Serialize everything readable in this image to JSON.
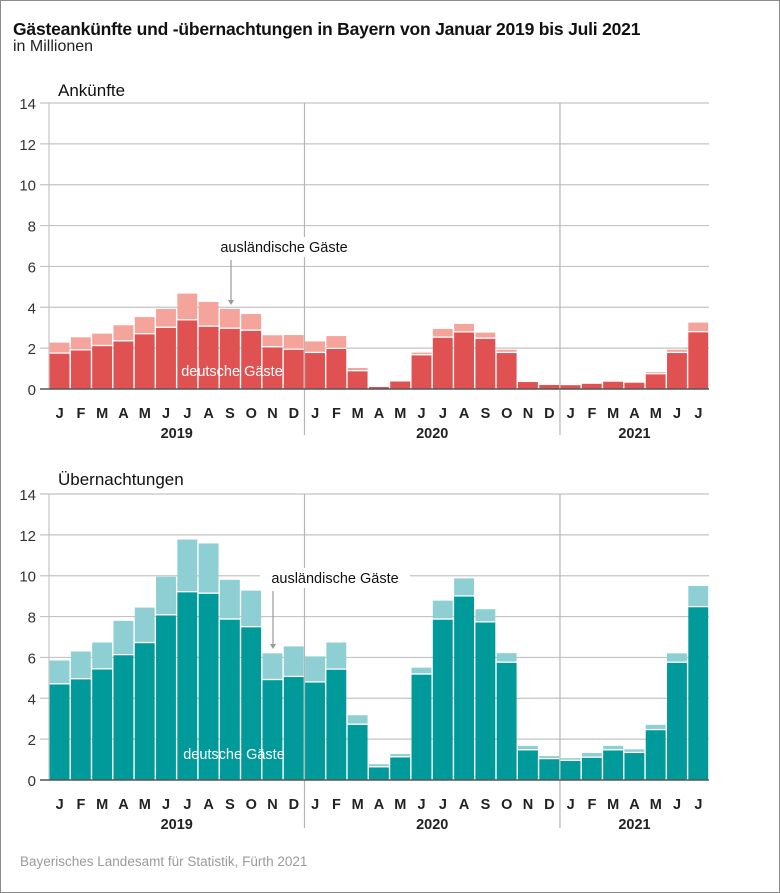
{
  "title": "Gästeankünfte und -übernachtungen in Bayern von Januar 2019 bis Juli 2021",
  "subtitle": "in Millionen",
  "source": "Bayerisches Landesamt für Statistik, Fürth 2021",
  "chart_data": [
    {
      "type": "bar",
      "stacked": true,
      "title": "Ankünfte",
      "unit": "Millionen",
      "ylim": [
        0,
        14
      ],
      "yticks": [
        0,
        2,
        4,
        6,
        8,
        10,
        12,
        14
      ],
      "grid": true,
      "categories": [
        "J",
        "F",
        "M",
        "A",
        "M",
        "J",
        "J",
        "A",
        "S",
        "O",
        "N",
        "D",
        "J",
        "F",
        "M",
        "A",
        "M",
        "J",
        "J",
        "A",
        "S",
        "O",
        "N",
        "D",
        "J",
        "F",
        "M",
        "A",
        "M",
        "J",
        "J"
      ],
      "years": [
        {
          "label": "2019",
          "months": 12
        },
        {
          "label": "2020",
          "months": 12
        },
        {
          "label": "2021",
          "months": 7
        }
      ],
      "series": [
        {
          "name": "deutsche Gäste",
          "color": "#e05252",
          "values": [
            1.73,
            1.89,
            2.1,
            2.33,
            2.68,
            2.99,
            3.36,
            3.05,
            2.95,
            2.85,
            2.04,
            1.92,
            1.76,
            1.96,
            0.87,
            0.1,
            0.37,
            1.65,
            2.51,
            2.77,
            2.46,
            1.76,
            0.34,
            0.2,
            0.19,
            0.26,
            0.36,
            0.31,
            0.72,
            1.76,
            2.78
          ]
        },
        {
          "name": "ausländische Gäste",
          "color": "#f4a49a",
          "values": [
            0.54,
            0.64,
            0.61,
            0.79,
            0.84,
            0.93,
            1.31,
            1.21,
            0.97,
            0.82,
            0.59,
            0.72,
            0.57,
            0.63,
            0.16,
            0.05,
            0.02,
            0.13,
            0.43,
            0.41,
            0.3,
            0.16,
            0.02,
            0.01,
            0.02,
            0.02,
            0.02,
            0.02,
            0.1,
            0.16,
            0.47
          ]
        }
      ],
      "annotations": {
        "foreign": "ausländische Gäste",
        "german": "deutsche Gäste"
      }
    },
    {
      "type": "bar",
      "stacked": true,
      "title": "Übernachtungen",
      "unit": "Millionen",
      "ylim": [
        0,
        14
      ],
      "yticks": [
        0,
        2,
        4,
        6,
        8,
        10,
        12,
        14
      ],
      "grid": true,
      "categories": [
        "J",
        "F",
        "M",
        "A",
        "M",
        "J",
        "J",
        "A",
        "S",
        "O",
        "N",
        "D",
        "J",
        "F",
        "M",
        "A",
        "M",
        "J",
        "J",
        "A",
        "S",
        "O",
        "N",
        "D",
        "J",
        "F",
        "M",
        "A",
        "M",
        "J",
        "J"
      ],
      "years": [
        {
          "label": "2019",
          "months": 12
        },
        {
          "label": "2020",
          "months": 12
        },
        {
          "label": "2021",
          "months": 7
        }
      ],
      "series": [
        {
          "name": "deutsche Gäste",
          "color": "#009a9a",
          "values": [
            4.68,
            4.93,
            5.41,
            6.11,
            6.7,
            8.06,
            9.19,
            9.12,
            7.85,
            7.48,
            4.89,
            5.04,
            4.77,
            5.4,
            2.7,
            0.62,
            1.11,
            5.16,
            7.85,
            8.98,
            7.71,
            5.74,
            1.45,
            1.02,
            0.93,
            1.09,
            1.45,
            1.32,
            2.44,
            5.74,
            8.46
          ]
        },
        {
          "name": "ausländische Gäste",
          "color": "#8ecfd3",
          "values": [
            1.17,
            1.36,
            1.32,
            1.68,
            1.74,
            1.89,
            2.58,
            2.46,
            1.95,
            1.79,
            1.31,
            1.5,
            1.28,
            1.33,
            0.47,
            0.15,
            0.16,
            0.34,
            0.93,
            0.89,
            0.65,
            0.47,
            0.22,
            0.15,
            0.14,
            0.23,
            0.22,
            0.18,
            0.26,
            0.46,
            1.04
          ]
        }
      ],
      "annotations": {
        "foreign": "ausländische Gäste",
        "german": "deutsche Gäste"
      }
    }
  ]
}
